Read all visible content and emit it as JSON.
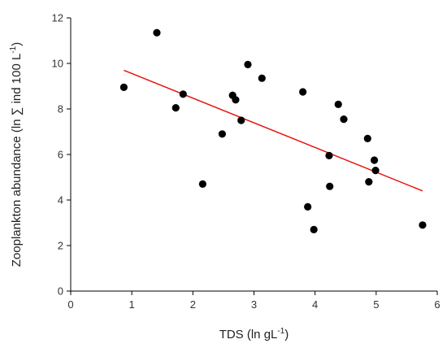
{
  "chart_data": {
    "type": "scatter",
    "title": "",
    "xlabel": "TDS (ln gL",
    "xlabel_sup": "-1",
    "xlabel_end": ")",
    "ylabel": "Zooplankton abundance (ln ∑ ind 100 L",
    "ylabel_sup": "-1",
    "ylabel_end": ")",
    "xlim": [
      0,
      6
    ],
    "ylim": [
      0,
      12
    ],
    "xticks": [
      0,
      1,
      2,
      3,
      4,
      5,
      6
    ],
    "yticks": [
      0,
      2,
      4,
      6,
      8,
      10,
      12
    ],
    "grid": false,
    "colors": {
      "points": "#000000",
      "trendline": "#e8130d"
    },
    "points": [
      {
        "x": 0.87,
        "y": 8.95
      },
      {
        "x": 1.41,
        "y": 11.35
      },
      {
        "x": 1.72,
        "y": 8.05
      },
      {
        "x": 1.84,
        "y": 8.65
      },
      {
        "x": 2.16,
        "y": 4.7
      },
      {
        "x": 2.48,
        "y": 6.9
      },
      {
        "x": 2.65,
        "y": 8.6
      },
      {
        "x": 2.7,
        "y": 8.4
      },
      {
        "x": 2.79,
        "y": 7.5
      },
      {
        "x": 2.9,
        "y": 9.95
      },
      {
        "x": 3.13,
        "y": 9.35
      },
      {
        "x": 3.8,
        "y": 8.75
      },
      {
        "x": 3.88,
        "y": 3.7
      },
      {
        "x": 3.98,
        "y": 2.7
      },
      {
        "x": 4.23,
        "y": 5.95
      },
      {
        "x": 4.24,
        "y": 4.6
      },
      {
        "x": 4.38,
        "y": 8.2
      },
      {
        "x": 4.47,
        "y": 7.55
      },
      {
        "x": 4.86,
        "y": 6.7
      },
      {
        "x": 4.88,
        "y": 4.8
      },
      {
        "x": 4.97,
        "y": 5.75
      },
      {
        "x": 4.99,
        "y": 5.3
      },
      {
        "x": 5.76,
        "y": 2.9
      }
    ],
    "trendline": {
      "x": [
        0.87,
        5.76
      ],
      "y": [
        9.7,
        4.4
      ]
    }
  }
}
